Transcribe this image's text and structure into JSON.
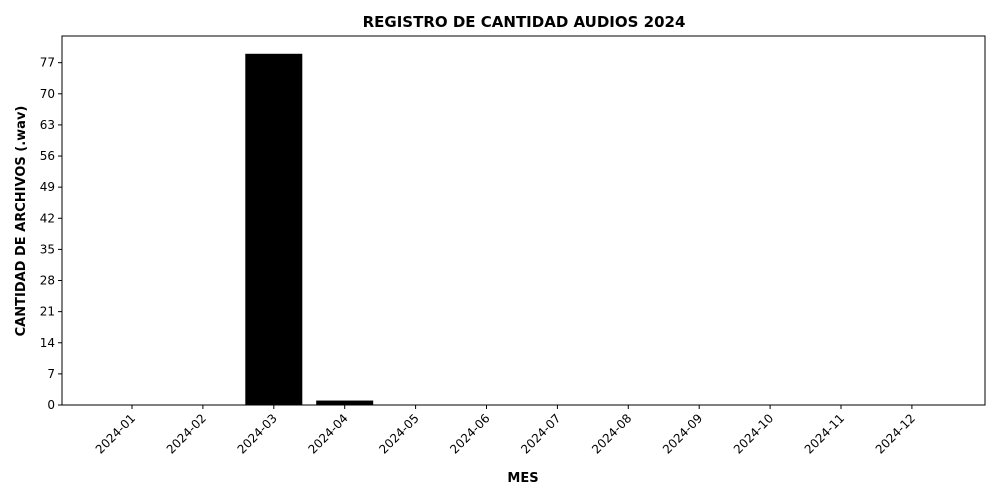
{
  "chart_data": {
    "type": "bar",
    "title": "REGISTRO DE CANTIDAD AUDIOS 2024",
    "xlabel": "MES",
    "ylabel": "CANTIDAD DE ARCHIVOS (.wav)",
    "categories": [
      "2024-01",
      "2024-02",
      "2024-03",
      "2024-04",
      "2024-05",
      "2024-06",
      "2024-07",
      "2024-08",
      "2024-09",
      "2024-10",
      "2024-11",
      "2024-12"
    ],
    "values": [
      0,
      0,
      79,
      1,
      0,
      0,
      0,
      0,
      0,
      0,
      0,
      0
    ],
    "yticks": [
      0,
      7,
      14,
      21,
      28,
      35,
      42,
      49,
      56,
      63,
      70,
      77
    ],
    "ylim": [
      0,
      83
    ],
    "bar_color": "#000000",
    "grid": false,
    "legend": "none"
  }
}
